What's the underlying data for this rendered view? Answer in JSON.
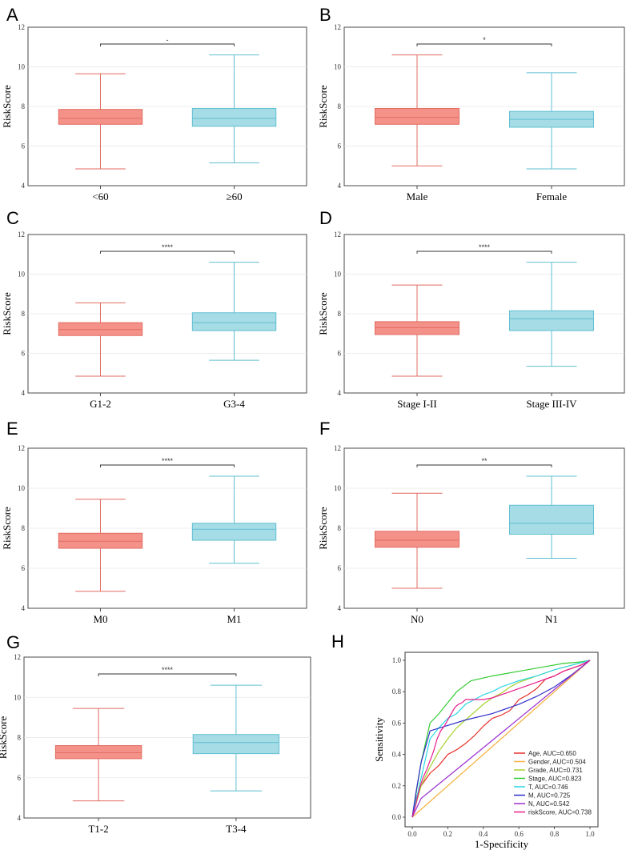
{
  "colors": {
    "box_left": "#f4928a",
    "box_left_edge": "#e16b60",
    "box_right": "#a6dce6",
    "box_right_edge": "#5fbfd1"
  },
  "chart_data": [
    {
      "type": "box",
      "panel": "A",
      "ylabel": "RiskScore",
      "ylim": [
        4,
        12
      ],
      "yticks": [
        "4",
        "6",
        "8",
        "10",
        "12"
      ],
      "significance": "-",
      "groups": [
        {
          "name": "<60",
          "min": 4.85,
          "q1": 7.1,
          "median": 7.4,
          "q3": 7.85,
          "max": 9.65
        },
        {
          "name": "≥60",
          "min": 5.15,
          "q1": 7.0,
          "median": 7.4,
          "q3": 7.9,
          "max": 10.6
        }
      ]
    },
    {
      "type": "box",
      "panel": "B",
      "ylabel": "RiskScore",
      "ylim": [
        4,
        12
      ],
      "yticks": [
        "4",
        "6",
        "8",
        "10",
        "12"
      ],
      "significance": "*",
      "groups": [
        {
          "name": "Male",
          "min": 5.0,
          "q1": 7.1,
          "median": 7.45,
          "q3": 7.9,
          "max": 10.6
        },
        {
          "name": "Female",
          "min": 4.85,
          "q1": 6.95,
          "median": 7.35,
          "q3": 7.75,
          "max": 9.7
        }
      ]
    },
    {
      "type": "box",
      "panel": "C",
      "ylabel": "RiskScore",
      "ylim": [
        4,
        12
      ],
      "yticks": [
        "4",
        "6",
        "8",
        "10",
        "12"
      ],
      "significance": "****",
      "groups": [
        {
          "name": "G1-2",
          "min": 4.85,
          "q1": 6.9,
          "median": 7.2,
          "q3": 7.55,
          "max": 8.55
        },
        {
          "name": "G3-4",
          "min": 5.65,
          "q1": 7.15,
          "median": 7.55,
          "q3": 8.05,
          "max": 10.6
        }
      ]
    },
    {
      "type": "box",
      "panel": "D",
      "ylabel": "RiskScore",
      "ylim": [
        4,
        12
      ],
      "yticks": [
        "4",
        "6",
        "8",
        "10",
        "12"
      ],
      "significance": "****",
      "groups": [
        {
          "name": "Stage I-II",
          "min": 4.85,
          "q1": 6.95,
          "median": 7.3,
          "q3": 7.6,
          "max": 9.45
        },
        {
          "name": "Stage III-IV",
          "min": 5.35,
          "q1": 7.15,
          "median": 7.75,
          "q3": 8.15,
          "max": 10.6
        }
      ]
    },
    {
      "type": "box",
      "panel": "E",
      "ylabel": "RiskScore",
      "ylim": [
        4,
        12
      ],
      "yticks": [
        "4",
        "6",
        "8",
        "10",
        "12"
      ],
      "significance": "****",
      "groups": [
        {
          "name": "M0",
          "min": 4.85,
          "q1": 7.0,
          "median": 7.35,
          "q3": 7.75,
          "max": 9.45
        },
        {
          "name": "M1",
          "min": 6.25,
          "q1": 7.4,
          "median": 7.95,
          "q3": 8.25,
          "max": 10.6
        }
      ]
    },
    {
      "type": "box",
      "panel": "F",
      "ylabel": "RiskScore",
      "ylim": [
        4,
        12
      ],
      "yticks": [
        "4",
        "6",
        "8",
        "10",
        "12"
      ],
      "significance": "**",
      "groups": [
        {
          "name": "N0",
          "min": 5.0,
          "q1": 7.05,
          "median": 7.4,
          "q3": 7.85,
          "max": 9.75
        },
        {
          "name": "N1",
          "min": 6.5,
          "q1": 7.7,
          "median": 8.25,
          "q3": 9.15,
          "max": 10.6
        }
      ]
    },
    {
      "type": "box",
      "panel": "G",
      "ylabel": "RiskScore",
      "ylim": [
        4,
        12
      ],
      "yticks": [
        "4",
        "6",
        "8",
        "10",
        "12"
      ],
      "significance": "****",
      "groups": [
        {
          "name": "T1-2",
          "min": 4.85,
          "q1": 6.95,
          "median": 7.25,
          "q3": 7.6,
          "max": 9.45
        },
        {
          "name": "T3-4",
          "min": 5.35,
          "q1": 7.2,
          "median": 7.75,
          "q3": 8.15,
          "max": 10.6
        }
      ]
    },
    {
      "type": "line",
      "panel": "H",
      "xlabel": "1-Specificity",
      "ylabel": "Sensitivity",
      "xlim": [
        0,
        1
      ],
      "ylim": [
        0,
        1
      ],
      "xticks": [
        "0.0",
        "0.2",
        "0.4",
        "0.6",
        "0.8",
        "1.0"
      ],
      "yticks": [
        "0.0",
        "0.2",
        "0.4",
        "0.6",
        "0.8",
        "1.0"
      ],
      "series": [
        {
          "name": "Age, AUC=0.650",
          "color": "#e8302a",
          "x": [
            0,
            0.02,
            0.05,
            0.1,
            0.15,
            0.2,
            0.25,
            0.3,
            0.35,
            0.4,
            0.45,
            0.5,
            0.55,
            0.6,
            0.65,
            0.7,
            0.75,
            0.8,
            0.85,
            0.9,
            0.95,
            1
          ],
          "y": [
            0,
            0.12,
            0.2,
            0.28,
            0.33,
            0.4,
            0.43,
            0.47,
            0.52,
            0.58,
            0.63,
            0.65,
            0.68,
            0.75,
            0.78,
            0.82,
            0.88,
            0.9,
            0.93,
            0.95,
            0.97,
            1
          ]
        },
        {
          "name": "Gender, AUC=0.504",
          "color": "#f5b342",
          "x": [
            0,
            1
          ],
          "y": [
            0,
            1
          ]
        },
        {
          "name": "Grade, AUC=0.731",
          "color": "#a6d12e",
          "x": [
            0,
            0.05,
            0.1,
            0.15,
            0.2,
            0.25,
            0.3,
            0.35,
            0.4,
            0.45,
            0.5,
            0.55,
            0.6,
            0.7,
            0.8,
            0.9,
            1
          ],
          "y": [
            0,
            0.2,
            0.32,
            0.42,
            0.5,
            0.57,
            0.62,
            0.67,
            0.72,
            0.76,
            0.79,
            0.83,
            0.86,
            0.9,
            0.94,
            0.97,
            1
          ]
        },
        {
          "name": "Stage, AUC=0.823",
          "color": "#33cc33",
          "x": [
            0,
            0.05,
            0.1,
            0.15,
            0.2,
            0.25,
            0.33,
            0.45,
            0.6,
            0.75,
            0.85,
            0.95,
            1
          ],
          "y": [
            0,
            0.35,
            0.6,
            0.66,
            0.73,
            0.8,
            0.87,
            0.9,
            0.93,
            0.96,
            0.98,
            0.99,
            1
          ]
        },
        {
          "name": "T, AUC=0.746",
          "color": "#2ed6e6",
          "x": [
            0,
            0.05,
            0.1,
            0.15,
            0.2,
            0.25,
            0.3,
            0.35,
            0.4,
            0.45,
            0.5,
            0.6,
            0.7,
            0.8,
            0.9,
            1
          ],
          "y": [
            0,
            0.25,
            0.5,
            0.57,
            0.63,
            0.66,
            0.72,
            0.75,
            0.78,
            0.8,
            0.83,
            0.87,
            0.9,
            0.94,
            0.97,
            1
          ]
        },
        {
          "name": "M, AUC=0.725",
          "color": "#3030c8",
          "x": [
            0,
            0.02,
            0.05,
            0.1,
            0.3,
            0.45,
            0.6,
            0.7,
            0.8,
            0.9,
            1
          ],
          "y": [
            0,
            0.15,
            0.35,
            0.55,
            0.62,
            0.66,
            0.72,
            0.77,
            0.83,
            0.91,
            1
          ]
        },
        {
          "name": "N, AUC=0.542",
          "color": "#9a2fd0",
          "x": [
            0,
            0.05,
            0.3,
            1
          ],
          "y": [
            0,
            0.12,
            0.35,
            1
          ]
        },
        {
          "name": "riskScore, AUC=0.738",
          "color": "#e81e8c",
          "x": [
            0,
            0.02,
            0.04,
            0.06,
            0.08,
            0.1,
            0.12,
            0.14,
            0.16,
            0.18,
            0.2,
            0.22,
            0.24,
            0.26,
            0.28,
            0.3,
            0.35,
            0.4,
            0.45,
            0.5,
            0.55,
            0.6,
            0.65,
            0.7,
            0.75,
            0.8,
            0.85,
            0.9,
            0.95,
            1
          ],
          "y": [
            0,
            0.08,
            0.18,
            0.25,
            0.3,
            0.36,
            0.42,
            0.5,
            0.55,
            0.58,
            0.62,
            0.66,
            0.7,
            0.72,
            0.73,
            0.75,
            0.75,
            0.75,
            0.76,
            0.78,
            0.8,
            0.82,
            0.84,
            0.86,
            0.88,
            0.9,
            0.93,
            0.95,
            0.97,
            1
          ]
        }
      ],
      "diagonal_color": "#c8a200"
    }
  ]
}
